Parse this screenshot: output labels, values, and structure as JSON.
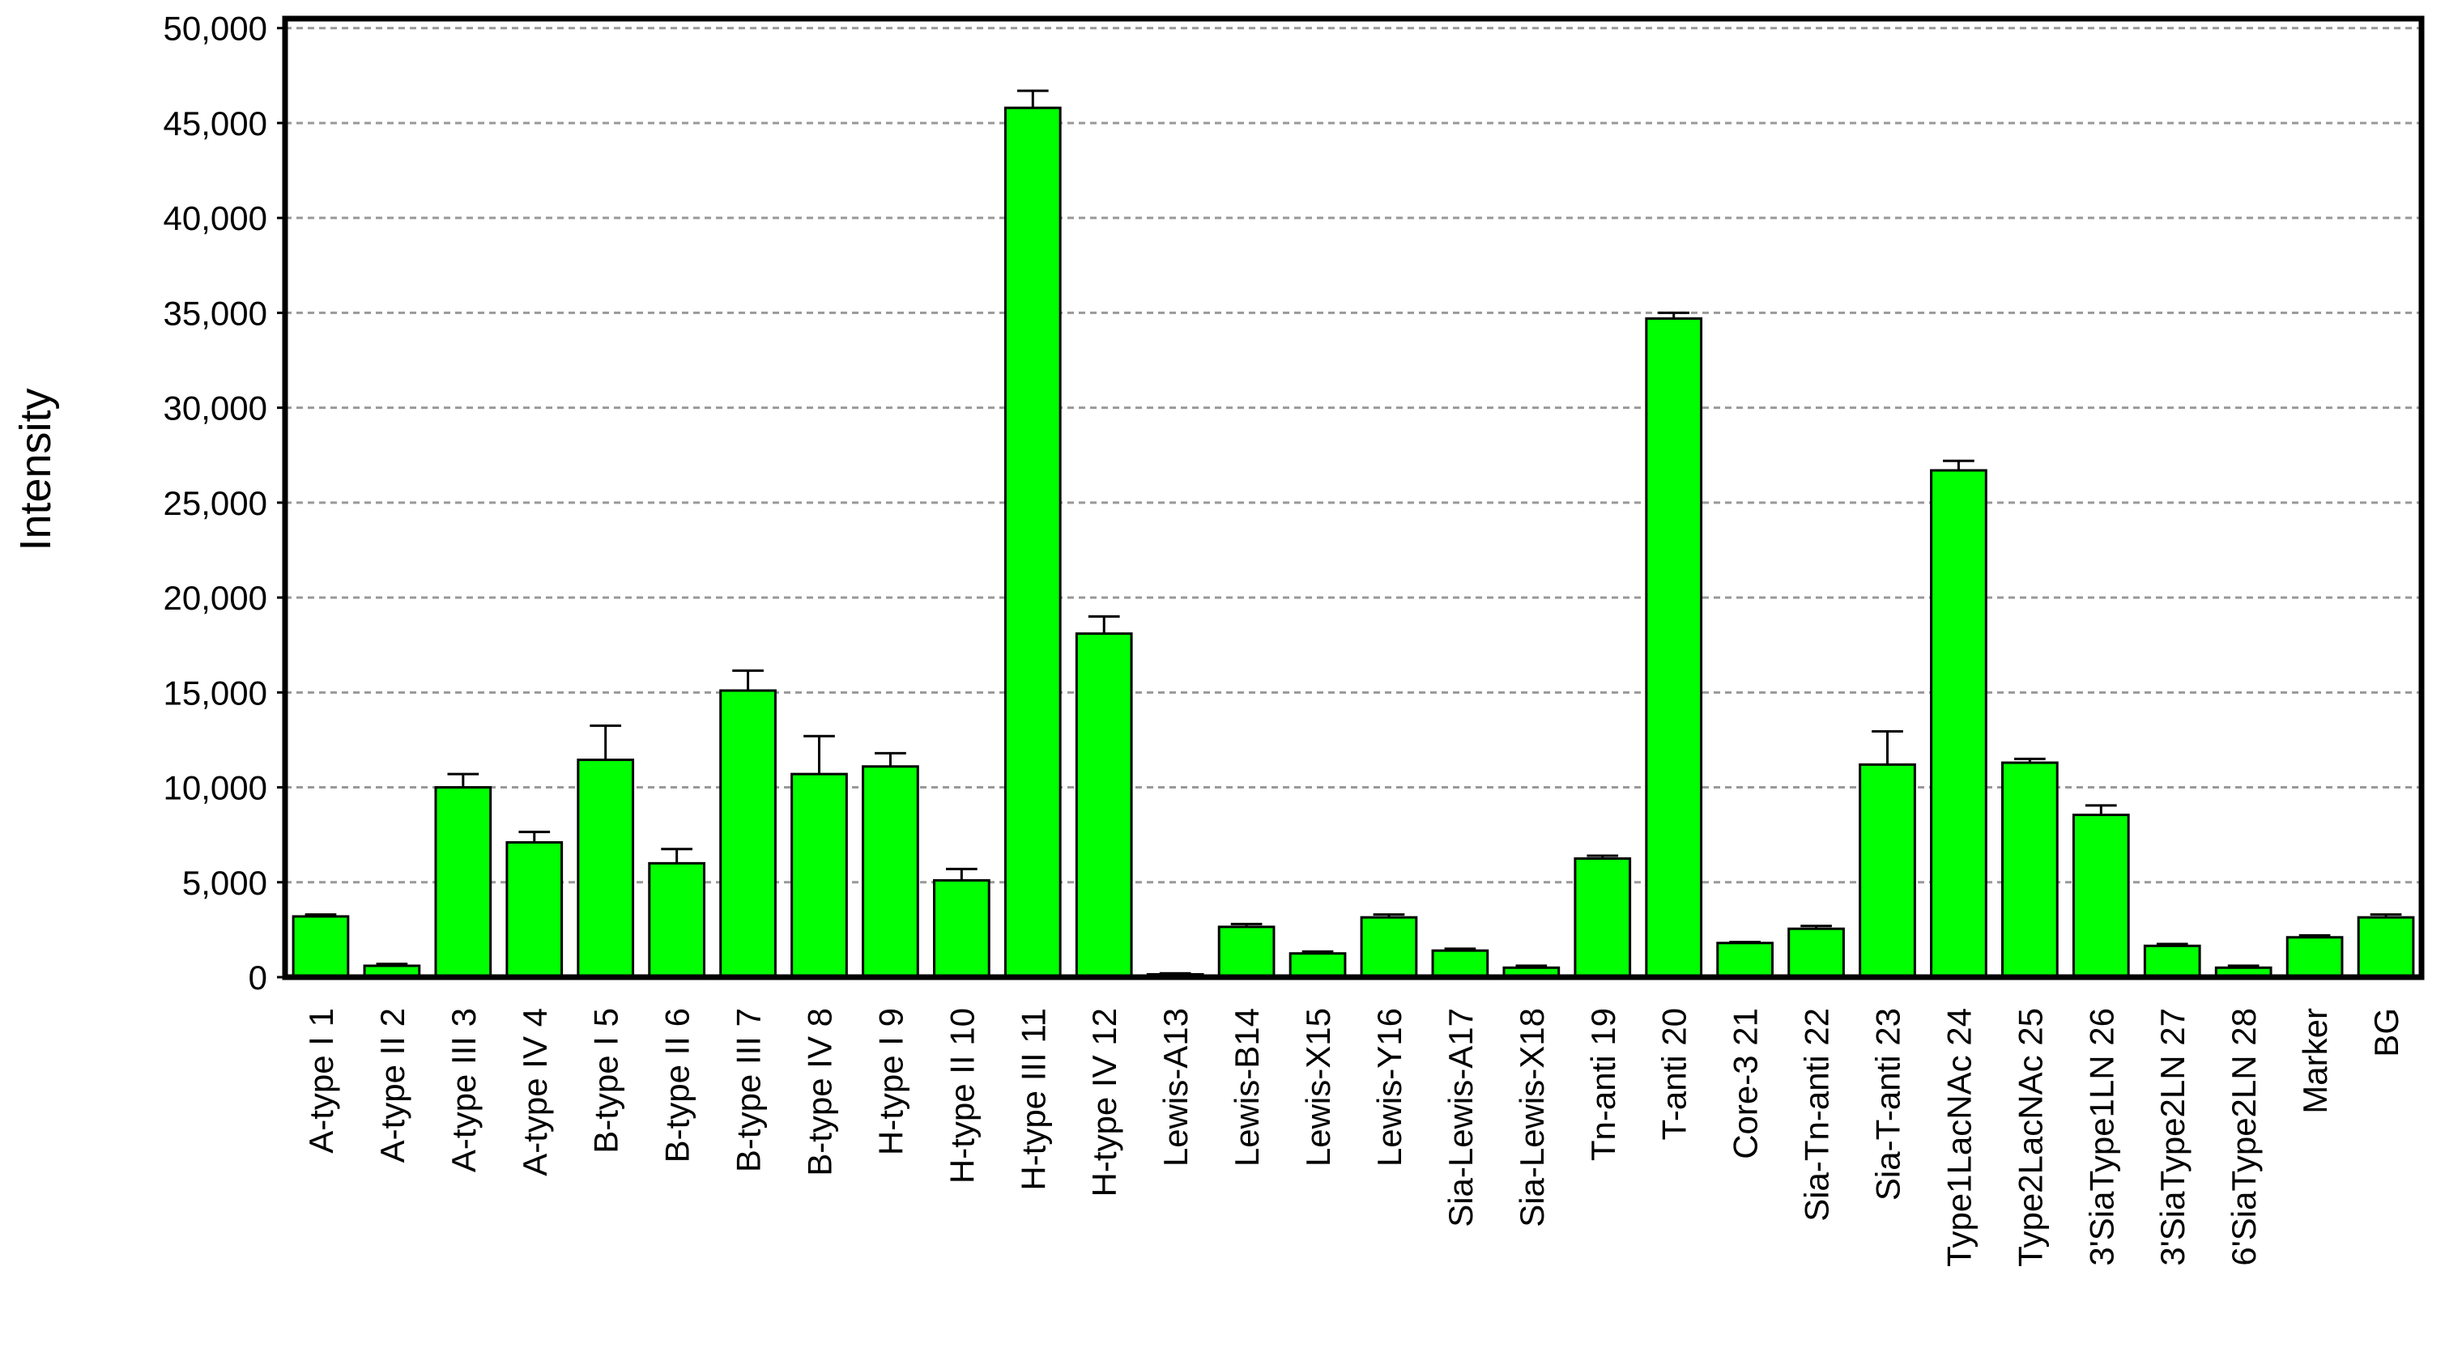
{
  "chart_data": {
    "type": "bar",
    "y_label": "Intensity",
    "categories": [
      "A-type I 1",
      "A-type II 2",
      "A-type III 3",
      "A-type IV 4",
      "B-type I 5",
      "B-type II 6",
      "B-type III 7",
      "B-type IV 8",
      "H-type I 9",
      "H-type II 10",
      "H-type III 11",
      "H-type IV 12",
      "Lewis-A13",
      "Lewis-B14",
      "Lewis-X15",
      "Lewis-Y16",
      "Sia-Lewis-A17",
      "Sia-Lewis-X18",
      "Tn-anti 19",
      "T-anti 20",
      "Core-3 21",
      "Sia-Tn-anti 22",
      "Sia-T-anti 23",
      "Type1LacNAc 24",
      "Type2LacNAc 25",
      "3'SiaType1LN 26",
      "3'SiaType2LN 27",
      "6'SiaType2LN 28",
      "Marker",
      "BG"
    ],
    "values": [
      3200,
      600,
      10000,
      7100,
      11450,
      6000,
      15100,
      10700,
      11100,
      5100,
      45800,
      18100,
      150,
      2650,
      1250,
      3150,
      1400,
      500,
      6250,
      34700,
      1800,
      2550,
      11200,
      26700,
      11300,
      8550,
      1650,
      500,
      2100,
      3150
    ],
    "errors": [
      100,
      100,
      700,
      550,
      1800,
      750,
      1050,
      2000,
      700,
      600,
      900,
      900,
      50,
      150,
      100,
      150,
      100,
      100,
      150,
      300,
      50,
      150,
      1750,
      500,
      200,
      500,
      100,
      100,
      100,
      150
    ],
    "color": "#00ff00",
    "ylim": [
      0,
      50500
    ],
    "yticks": [
      0,
      {
        "value": 5000,
        "label": "5,000"
      },
      {
        "value": 10000,
        "label": "10,000"
      },
      {
        "value": 15000,
        "label": "15,000"
      },
      {
        "value": 20000,
        "label": "20,000"
      },
      {
        "value": 25000,
        "label": "25,000"
      },
      {
        "value": 30000,
        "label": "30,000"
      },
      {
        "value": 35000,
        "label": "35,000"
      },
      {
        "value": 40000,
        "label": "40,000"
      },
      {
        "value": 45000,
        "label": "45,000"
      },
      {
        "value": 50000,
        "label": "50,000"
      }
    ],
    "grid": true
  }
}
